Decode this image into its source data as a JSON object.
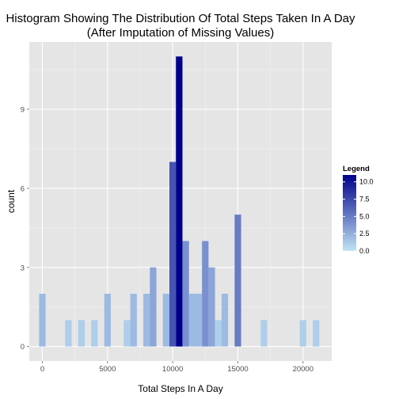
{
  "chart_data": {
    "type": "bar",
    "title": "Histogram Showing The Distribution Of Total Steps Taken In A Day",
    "subtitle": "(After Imputation of Missing Values)",
    "xlabel": "Total Steps In A Day",
    "ylabel": "count",
    "xlim": [
      -1000,
      22200
    ],
    "ylim": [
      -0.55,
      11.55
    ],
    "xticks": [
      0,
      5000,
      10000,
      15000,
      20000
    ],
    "xtick_labels": [
      "0",
      "5000",
      "10000",
      "15000",
      "20000"
    ],
    "yticks": [
      0,
      3,
      6,
      9
    ],
    "ytick_labels": [
      "0",
      "3",
      "6",
      "9"
    ],
    "bin_width": 500,
    "grid": true,
    "bins": [
      {
        "x": 0,
        "count": 2
      },
      {
        "x": 2000,
        "count": 1
      },
      {
        "x": 3000,
        "count": 1
      },
      {
        "x": 4000,
        "count": 1
      },
      {
        "x": 5000,
        "count": 2
      },
      {
        "x": 6500,
        "count": 1
      },
      {
        "x": 7000,
        "count": 2
      },
      {
        "x": 8000,
        "count": 2
      },
      {
        "x": 8500,
        "count": 3
      },
      {
        "x": 9500,
        "count": 2
      },
      {
        "x": 10000,
        "count": 7
      },
      {
        "x": 10500,
        "count": 11
      },
      {
        "x": 11000,
        "count": 4
      },
      {
        "x": 11500,
        "count": 2
      },
      {
        "x": 12000,
        "count": 2
      },
      {
        "x": 12500,
        "count": 4
      },
      {
        "x": 13000,
        "count": 3
      },
      {
        "x": 13500,
        "count": 1
      },
      {
        "x": 14000,
        "count": 2
      },
      {
        "x": 15000,
        "count": 5
      },
      {
        "x": 17000,
        "count": 1
      },
      {
        "x": 20000,
        "count": 1
      },
      {
        "x": 21000,
        "count": 1
      }
    ],
    "legend": {
      "title": "Legend",
      "labels": [
        "10.0",
        "7.5",
        "5.0",
        "2.5",
        "0.0"
      ],
      "values": [
        10,
        7.5,
        5,
        2.5,
        0
      ],
      "range": [
        0,
        11
      ],
      "placement": "right"
    },
    "colors": {
      "low": "#BFE3F5",
      "high": "#00008B",
      "panel": "#E5E5E5",
      "grid_major": "#FFFFFF",
      "grid_minor": "#F2F2F2"
    }
  }
}
